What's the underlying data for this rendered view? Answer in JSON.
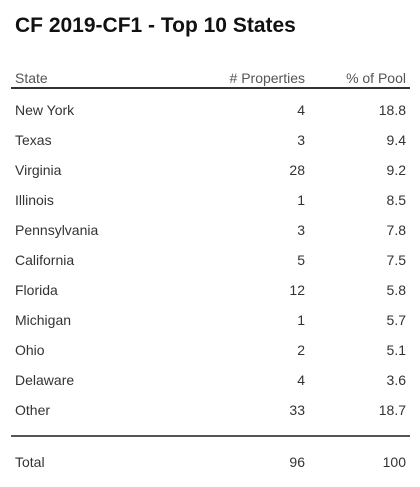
{
  "title": "CF 2019-CF1 - Top 10 States",
  "columns": {
    "state": "State",
    "properties": "# Properties",
    "pool": "% of Pool"
  },
  "rows": [
    {
      "state": "New York",
      "properties": "4",
      "pool": "18.8"
    },
    {
      "state": "Texas",
      "properties": "3",
      "pool": "9.4"
    },
    {
      "state": "Virginia",
      "properties": "28",
      "pool": "9.2"
    },
    {
      "state": "Illinois",
      "properties": "1",
      "pool": "8.5"
    },
    {
      "state": "Pennsylvania",
      "properties": "3",
      "pool": "7.8"
    },
    {
      "state": "California",
      "properties": "5",
      "pool": "7.5"
    },
    {
      "state": "Florida",
      "properties": "12",
      "pool": "5.8"
    },
    {
      "state": "Michigan",
      "properties": "1",
      "pool": "5.7"
    },
    {
      "state": "Ohio",
      "properties": "2",
      "pool": "5.1"
    },
    {
      "state": "Delaware",
      "properties": "4",
      "pool": "3.6"
    },
    {
      "state": "Other",
      "properties": "33",
      "pool": "18.7"
    }
  ],
  "total": {
    "label": "Total",
    "properties": "96",
    "pool": "100"
  }
}
